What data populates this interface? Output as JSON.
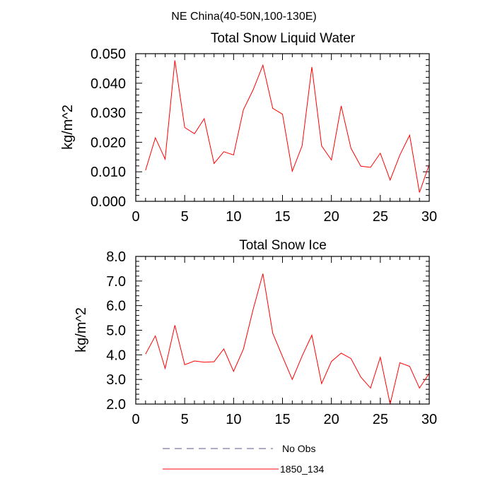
{
  "figure": {
    "suptitle": "NE China(40-50N,100-130E)"
  },
  "chart_data": [
    {
      "type": "line",
      "title": "Total Snow Liquid Water",
      "xlabel": "",
      "ylabel": "kg/m^2",
      "xlim": [
        0,
        30
      ],
      "ylim": [
        0.0,
        0.05
      ],
      "x_ticks": [
        0,
        5,
        10,
        15,
        20,
        25,
        30
      ],
      "x_tick_labels": [
        "0",
        "5",
        "10",
        "15",
        "20",
        "25",
        "30"
      ],
      "y_ticks": [
        0.0,
        0.01,
        0.02,
        0.03,
        0.04,
        0.05
      ],
      "y_tick_labels": [
        "0.000",
        "0.010",
        "0.020",
        "0.030",
        "0.040",
        "0.050"
      ],
      "grid": false,
      "series": [
        {
          "name": "1850_134",
          "color": "#ff0000",
          "x": [
            1,
            2,
            3,
            4,
            5,
            6,
            7,
            8,
            9,
            10,
            11,
            12,
            13,
            14,
            15,
            16,
            17,
            18,
            19,
            20,
            21,
            22,
            23,
            24,
            25,
            26,
            27,
            28,
            29,
            30
          ],
          "values": [
            0.0105,
            0.0215,
            0.0143,
            0.0477,
            0.025,
            0.0229,
            0.028,
            0.0128,
            0.0168,
            0.0157,
            0.031,
            0.0378,
            0.0461,
            0.0315,
            0.0295,
            0.0102,
            0.0188,
            0.0455,
            0.0188,
            0.014,
            0.0323,
            0.018,
            0.0119,
            0.0115,
            0.0163,
            0.0072,
            0.0157,
            0.0224,
            0.003,
            0.0125
          ]
        }
      ]
    },
    {
      "type": "line",
      "title": "Total Snow Ice",
      "xlabel": "",
      "ylabel": "kg/m^2",
      "xlim": [
        0,
        30
      ],
      "ylim": [
        2.0,
        8.0
      ],
      "x_ticks": [
        0,
        5,
        10,
        15,
        20,
        25,
        30
      ],
      "x_tick_labels": [
        "0",
        "5",
        "10",
        "15",
        "20",
        "25",
        "30"
      ],
      "y_ticks": [
        2.0,
        3.0,
        4.0,
        5.0,
        6.0,
        7.0,
        8.0
      ],
      "y_tick_labels": [
        "2.0",
        "3.0",
        "4.0",
        "5.0",
        "6.0",
        "7.0",
        "8.0"
      ],
      "grid": false,
      "series": [
        {
          "name": "1850_134",
          "color": "#ff0000",
          "x": [
            1,
            2,
            3,
            4,
            5,
            6,
            7,
            8,
            9,
            10,
            11,
            12,
            13,
            14,
            15,
            16,
            17,
            18,
            19,
            20,
            21,
            22,
            23,
            24,
            25,
            26,
            27,
            28,
            29,
            30
          ],
          "values": [
            4.03,
            4.77,
            3.45,
            5.2,
            3.6,
            3.75,
            3.7,
            3.72,
            4.24,
            3.33,
            4.23,
            5.85,
            7.3,
            4.88,
            3.93,
            3.0,
            3.95,
            4.8,
            2.83,
            3.73,
            4.07,
            3.85,
            3.1,
            2.65,
            3.9,
            2.0,
            3.68,
            3.53,
            2.65,
            3.25
          ]
        }
      ]
    }
  ],
  "legend": {
    "placement": "bottom",
    "entries": [
      {
        "label": "No Obs",
        "color": "#5a5a8a",
        "style": "dashed"
      },
      {
        "label": "1850_134",
        "color": "#ff0000",
        "style": "solid"
      }
    ]
  }
}
